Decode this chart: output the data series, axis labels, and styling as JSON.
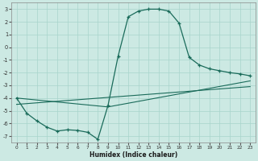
{
  "xlabel": "Humidex (Indice chaleur)",
  "xlim": [
    -0.5,
    23.5
  ],
  "ylim": [
    -7.5,
    3.5
  ],
  "yticks": [
    3,
    2,
    1,
    0,
    -1,
    -2,
    -3,
    -4,
    -5,
    -6,
    -7
  ],
  "xticks": [
    0,
    1,
    2,
    3,
    4,
    5,
    6,
    7,
    8,
    9,
    10,
    11,
    12,
    13,
    14,
    15,
    16,
    17,
    18,
    19,
    20,
    21,
    22,
    23
  ],
  "background_color": "#cce9e3",
  "grid_color": "#a8d4cc",
  "line_color": "#1a6b5a",
  "line1_x": [
    0,
    1,
    2,
    3,
    4,
    5,
    6,
    7,
    8,
    9,
    10,
    11,
    12,
    13,
    14,
    15,
    16,
    17,
    18,
    19,
    20,
    21,
    22,
    23
  ],
  "line1_y": [
    -4.0,
    -5.2,
    -5.8,
    -6.3,
    -6.6,
    -6.5,
    -6.55,
    -6.7,
    -7.25,
    -4.6,
    -0.7,
    2.4,
    2.85,
    3.0,
    3.0,
    2.85,
    1.9,
    -0.8,
    -1.4,
    -1.7,
    -1.85,
    -2.0,
    -2.1,
    -2.25
  ],
  "line2_x": [
    0,
    9,
    23
  ],
  "line2_y": [
    -4.0,
    -4.7,
    -2.65
  ],
  "line3_x": [
    0,
    23
  ],
  "line3_y": [
    -4.5,
    -3.1
  ]
}
